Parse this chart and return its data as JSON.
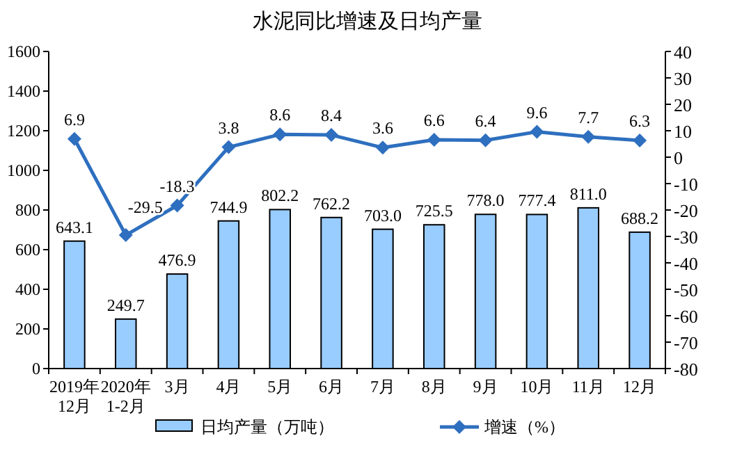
{
  "chart_data": {
    "type": "bar",
    "title": "水泥同比增速及日均产量",
    "categories": [
      "2019年\n12月",
      "2020年\n1-2月",
      "3月",
      "4月",
      "5月",
      "6月",
      "7月",
      "8月",
      "9月",
      "10月",
      "11月",
      "12月"
    ],
    "series": [
      {
        "name": "日均产量（万吨）",
        "color": "#99ccff",
        "values": [
          643.1,
          249.7,
          476.9,
          744.9,
          802.2,
          762.2,
          703.0,
          725.5,
          778.0,
          777.4,
          811.0,
          688.2
        ],
        "value_labels": [
          "643.1",
          "249.7",
          "476.9",
          "744.9",
          "802.2",
          "762.2",
          "703.0",
          "725.5",
          "778.0",
          "777.4",
          "811.0",
          "688.2"
        ]
      },
      {
        "name": "增速（%）",
        "type": "line",
        "axis": "y2",
        "marker": "diamond",
        "color": "#2e6fbf",
        "values": [
          6.9,
          -29.5,
          -18.3,
          3.8,
          8.6,
          8.4,
          3.6,
          6.6,
          6.4,
          9.6,
          7.7,
          6.3
        ],
        "value_labels": [
          "6.9",
          "-29.5",
          "-18.3",
          "3.8",
          "8.6",
          "8.4",
          "3.6",
          "6.6",
          "6.4",
          "9.6",
          "7.7",
          "6.3"
        ]
      }
    ],
    "ylim": [
      0,
      1600
    ],
    "yticks": [
      0,
      200,
      400,
      600,
      800,
      1000,
      1200,
      1400,
      1600
    ],
    "y2lim": [
      -80,
      40
    ],
    "y2ticks": [
      -80,
      -70,
      -60,
      -50,
      -40,
      -30,
      -20,
      -10,
      0,
      10,
      20,
      30,
      40
    ],
    "legend": "bottom"
  }
}
